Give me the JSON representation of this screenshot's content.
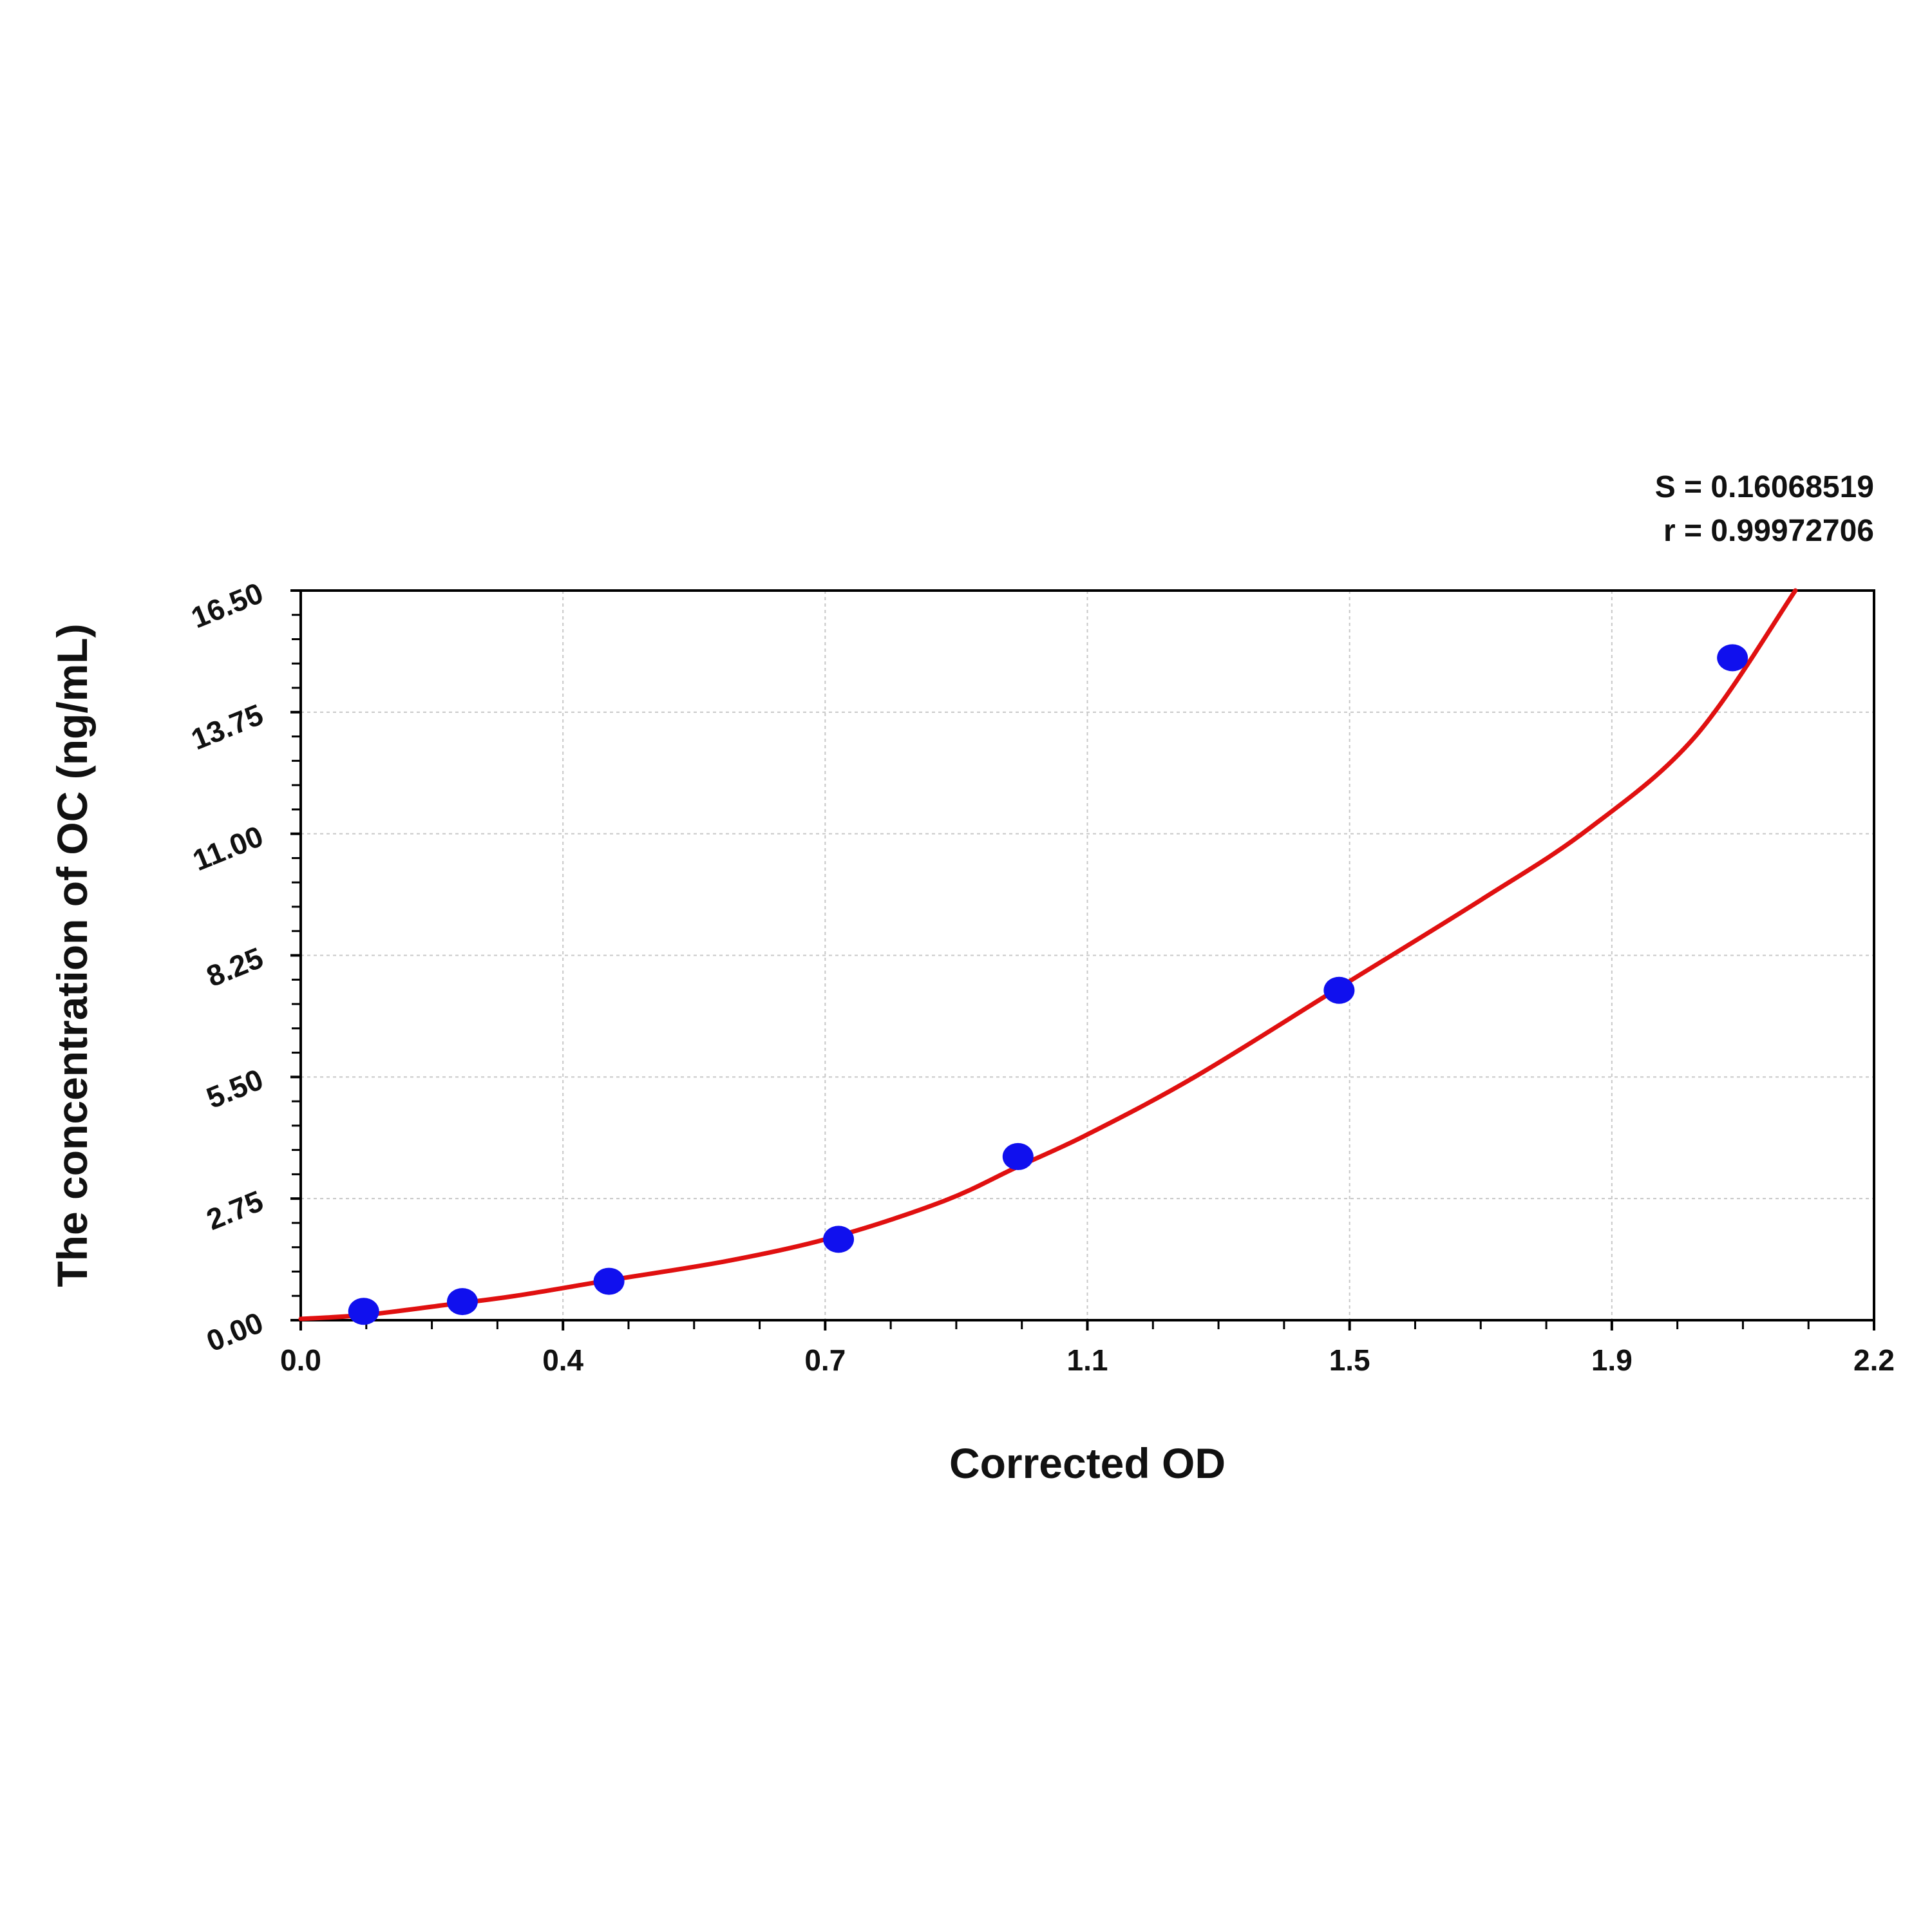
{
  "chart_data": {
    "type": "scatter",
    "xlabel": "Corrected OD",
    "ylabel": "The concentration of OC (ng/mL)",
    "xlim": [
      0.0,
      2.2
    ],
    "ylim": [
      0.0,
      16.5
    ],
    "x_ticks": [
      "0.0",
      "0.4",
      "0.7",
      "1.1",
      "1.5",
      "1.9",
      "2.2"
    ],
    "y_ticks": [
      "0.00",
      "2.75",
      "5.50",
      "8.25",
      "11.00",
      "13.75",
      "16.50"
    ],
    "grid": true,
    "annotations": [
      "S = 0.16068519",
      "r = 0.99972706"
    ],
    "points": [
      {
        "x": 0.088,
        "y": 0.2
      },
      {
        "x": 0.226,
        "y": 0.42
      },
      {
        "x": 0.431,
        "y": 0.88
      },
      {
        "x": 0.752,
        "y": 1.83
      },
      {
        "x": 1.003,
        "y": 3.7
      },
      {
        "x": 1.452,
        "y": 7.46
      },
      {
        "x": 2.002,
        "y": 14.98
      }
    ],
    "fit_curve": [
      {
        "x": 0.0,
        "y": 0.03
      },
      {
        "x": 0.09,
        "y": 0.12
      },
      {
        "x": 0.2,
        "y": 0.34
      },
      {
        "x": 0.3,
        "y": 0.55
      },
      {
        "x": 0.43,
        "y": 0.9
      },
      {
        "x": 0.6,
        "y": 1.35
      },
      {
        "x": 0.75,
        "y": 1.9
      },
      {
        "x": 0.9,
        "y": 2.7
      },
      {
        "x": 1.0,
        "y": 3.45
      },
      {
        "x": 1.1,
        "y": 4.2
      },
      {
        "x": 1.25,
        "y": 5.5
      },
      {
        "x": 1.45,
        "y": 7.5
      },
      {
        "x": 1.65,
        "y": 9.5
      },
      {
        "x": 1.8,
        "y": 11.1
      },
      {
        "x": 1.95,
        "y": 13.2
      },
      {
        "x": 2.09,
        "y": 16.5
      }
    ],
    "colors": {
      "points": "#1010ee",
      "curve": "#e01010",
      "grid": "#c8c8c8",
      "axes": "#000000"
    }
  }
}
